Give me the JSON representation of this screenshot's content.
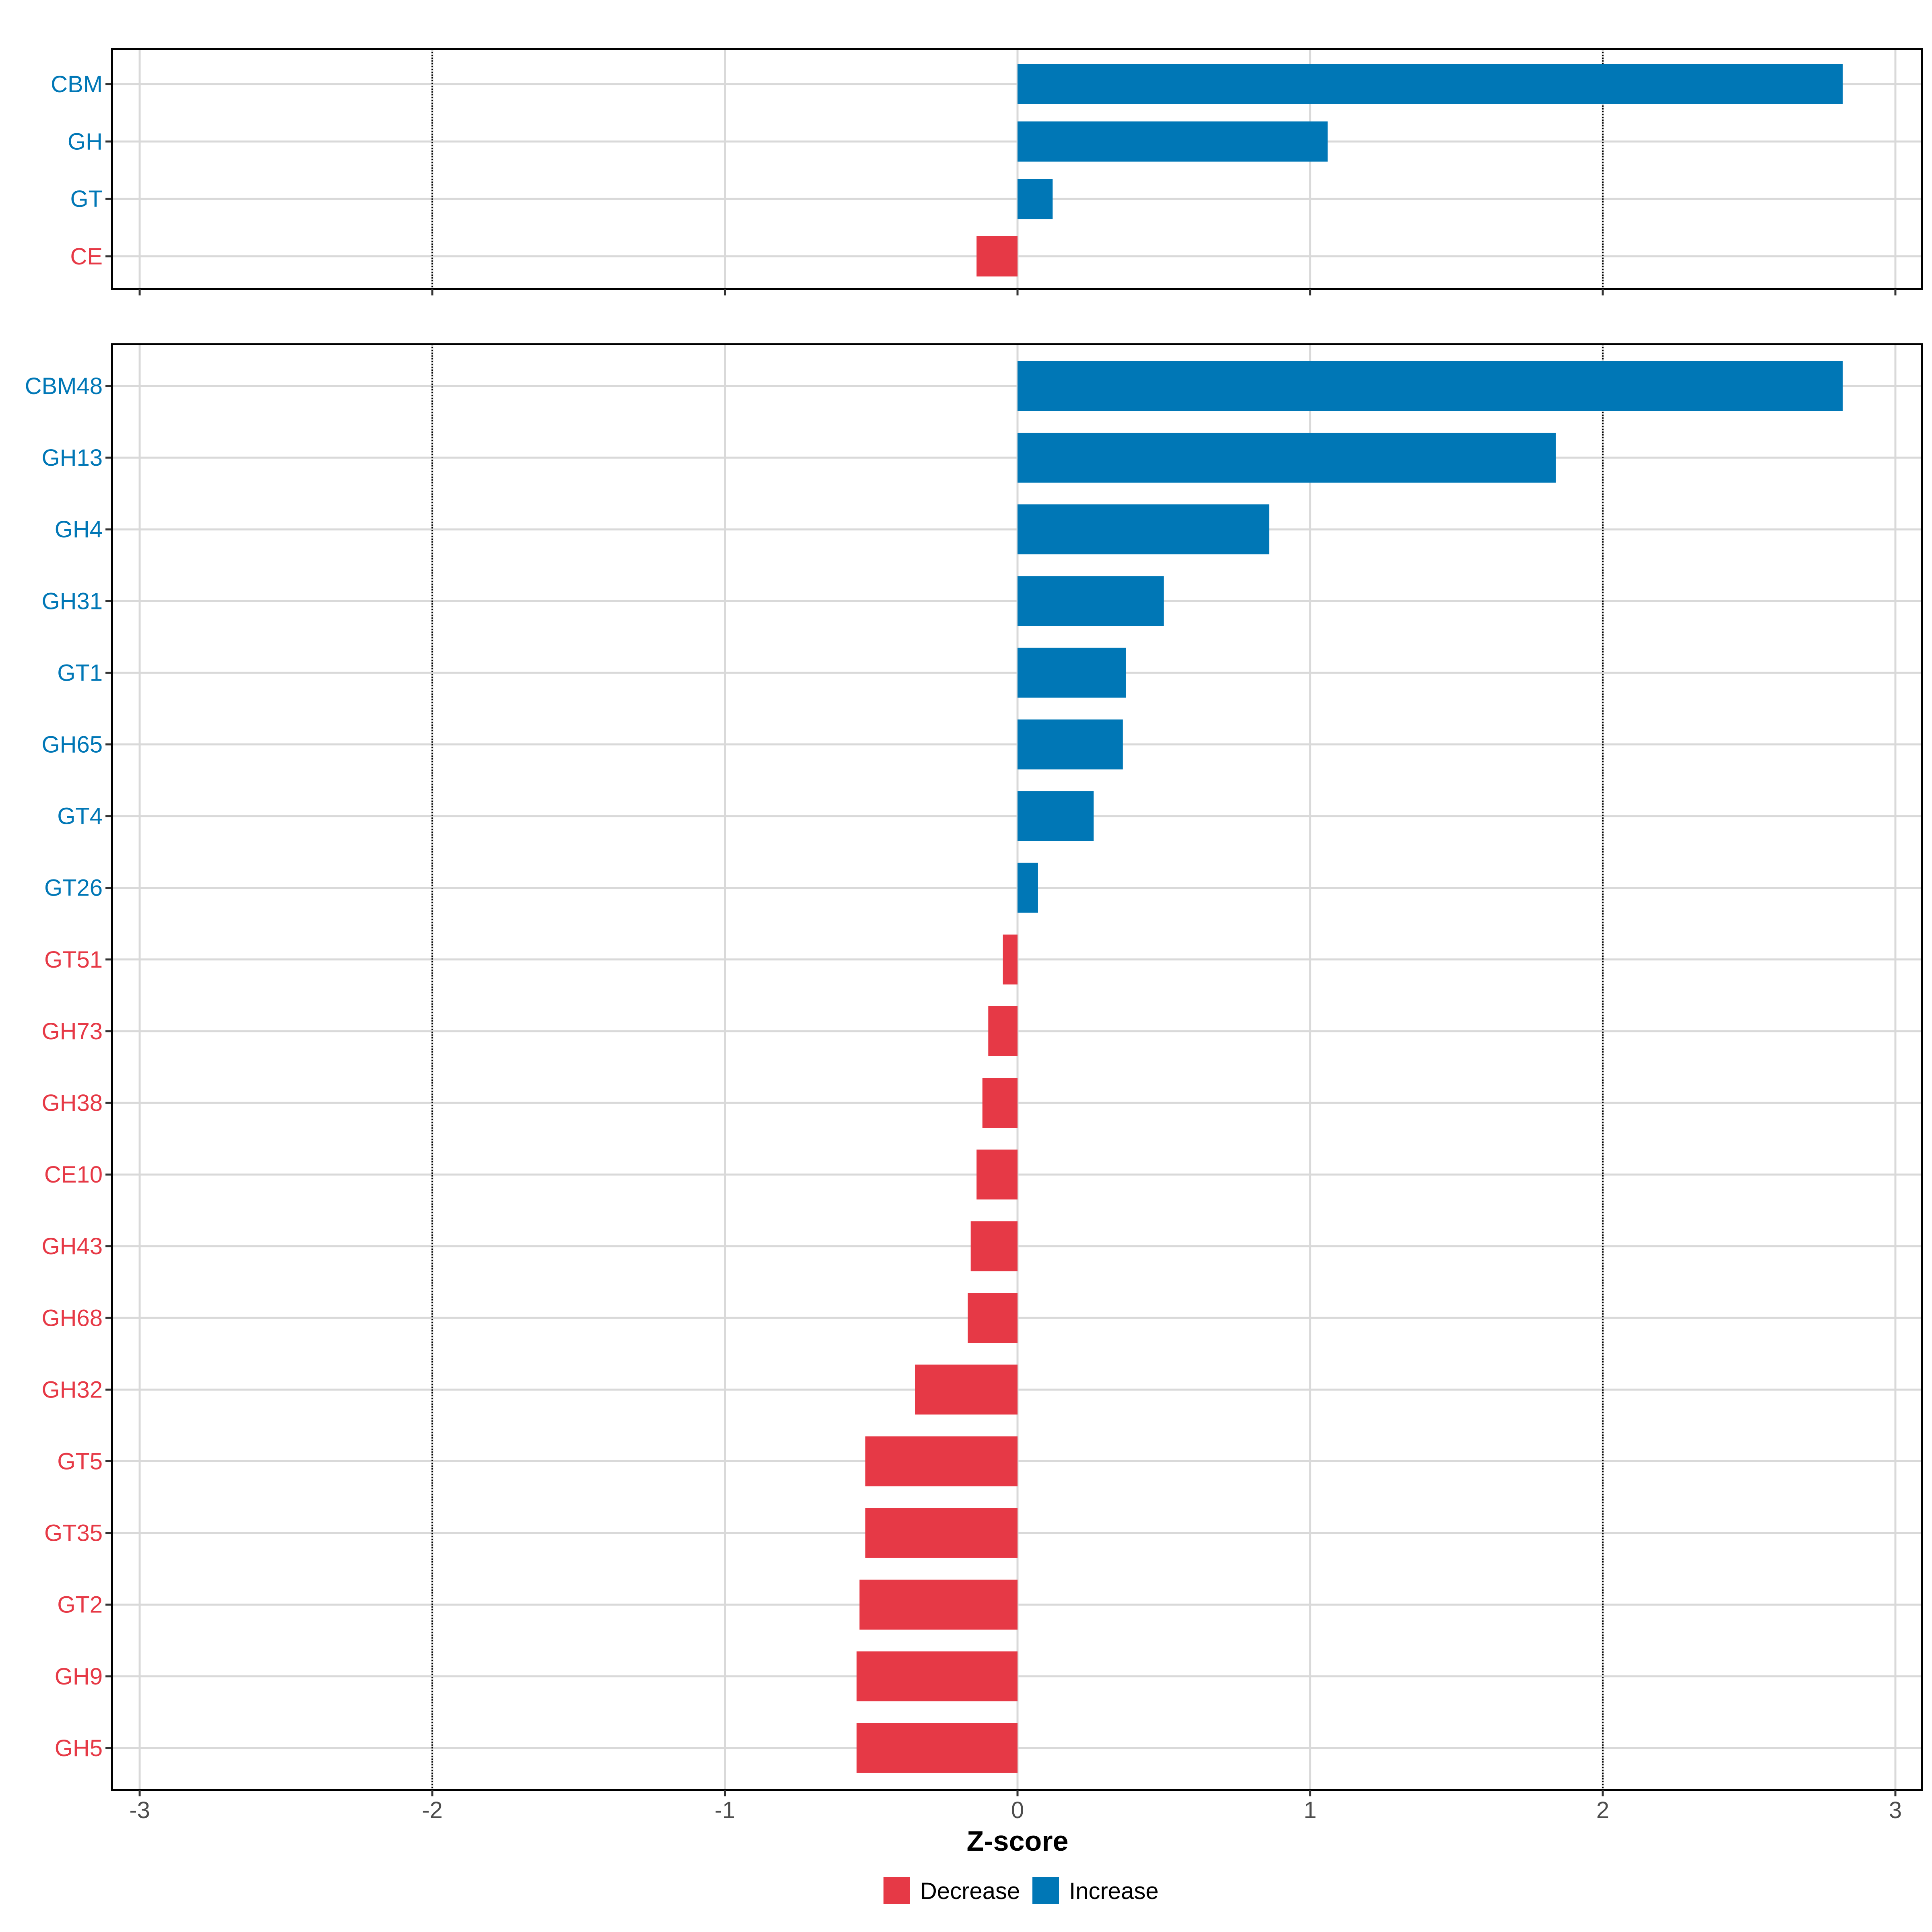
{
  "chart_data": [
    {
      "type": "bar",
      "orientation": "horizontal",
      "panel": "top",
      "categories": [
        "CBM",
        "GH",
        "GT",
        "CE"
      ],
      "values": [
        2.82,
        1.06,
        0.12,
        -0.14
      ],
      "xlim": [
        -3.1,
        3.1
      ],
      "reference_lines": [
        -2,
        2
      ]
    },
    {
      "type": "bar",
      "orientation": "horizontal",
      "panel": "bottom",
      "categories": [
        "CBM48",
        "GH13",
        "GH4",
        "GH31",
        "GT1",
        "GH65",
        "GT4",
        "GT26",
        "GT51",
        "GH73",
        "GH38",
        "CE10",
        "GH43",
        "GH68",
        "GH32",
        "GT5",
        "GT35",
        "GT2",
        "GH9",
        "GH5"
      ],
      "values": [
        2.82,
        1.84,
        0.86,
        0.5,
        0.37,
        0.36,
        0.26,
        0.07,
        -0.05,
        -0.1,
        -0.12,
        -0.14,
        -0.16,
        -0.17,
        -0.35,
        -0.52,
        -0.52,
        -0.54,
        -0.55,
        -0.55
      ],
      "xlim": [
        -3.1,
        3.1
      ],
      "xticks": [
        "-3",
        "-2",
        "-1",
        "0",
        "1",
        "2",
        "3"
      ],
      "xlabel": "Z-score",
      "reference_lines": [
        -2,
        2
      ]
    }
  ],
  "legend": {
    "items": [
      {
        "label": "Decrease",
        "color": "#e63946"
      },
      {
        "label": "Increase",
        "color": "#0077b6"
      }
    ],
    "position": "bottom"
  },
  "colors": {
    "increase": "#0077b6",
    "decrease": "#e63946",
    "grid": "#d9d9d9"
  }
}
